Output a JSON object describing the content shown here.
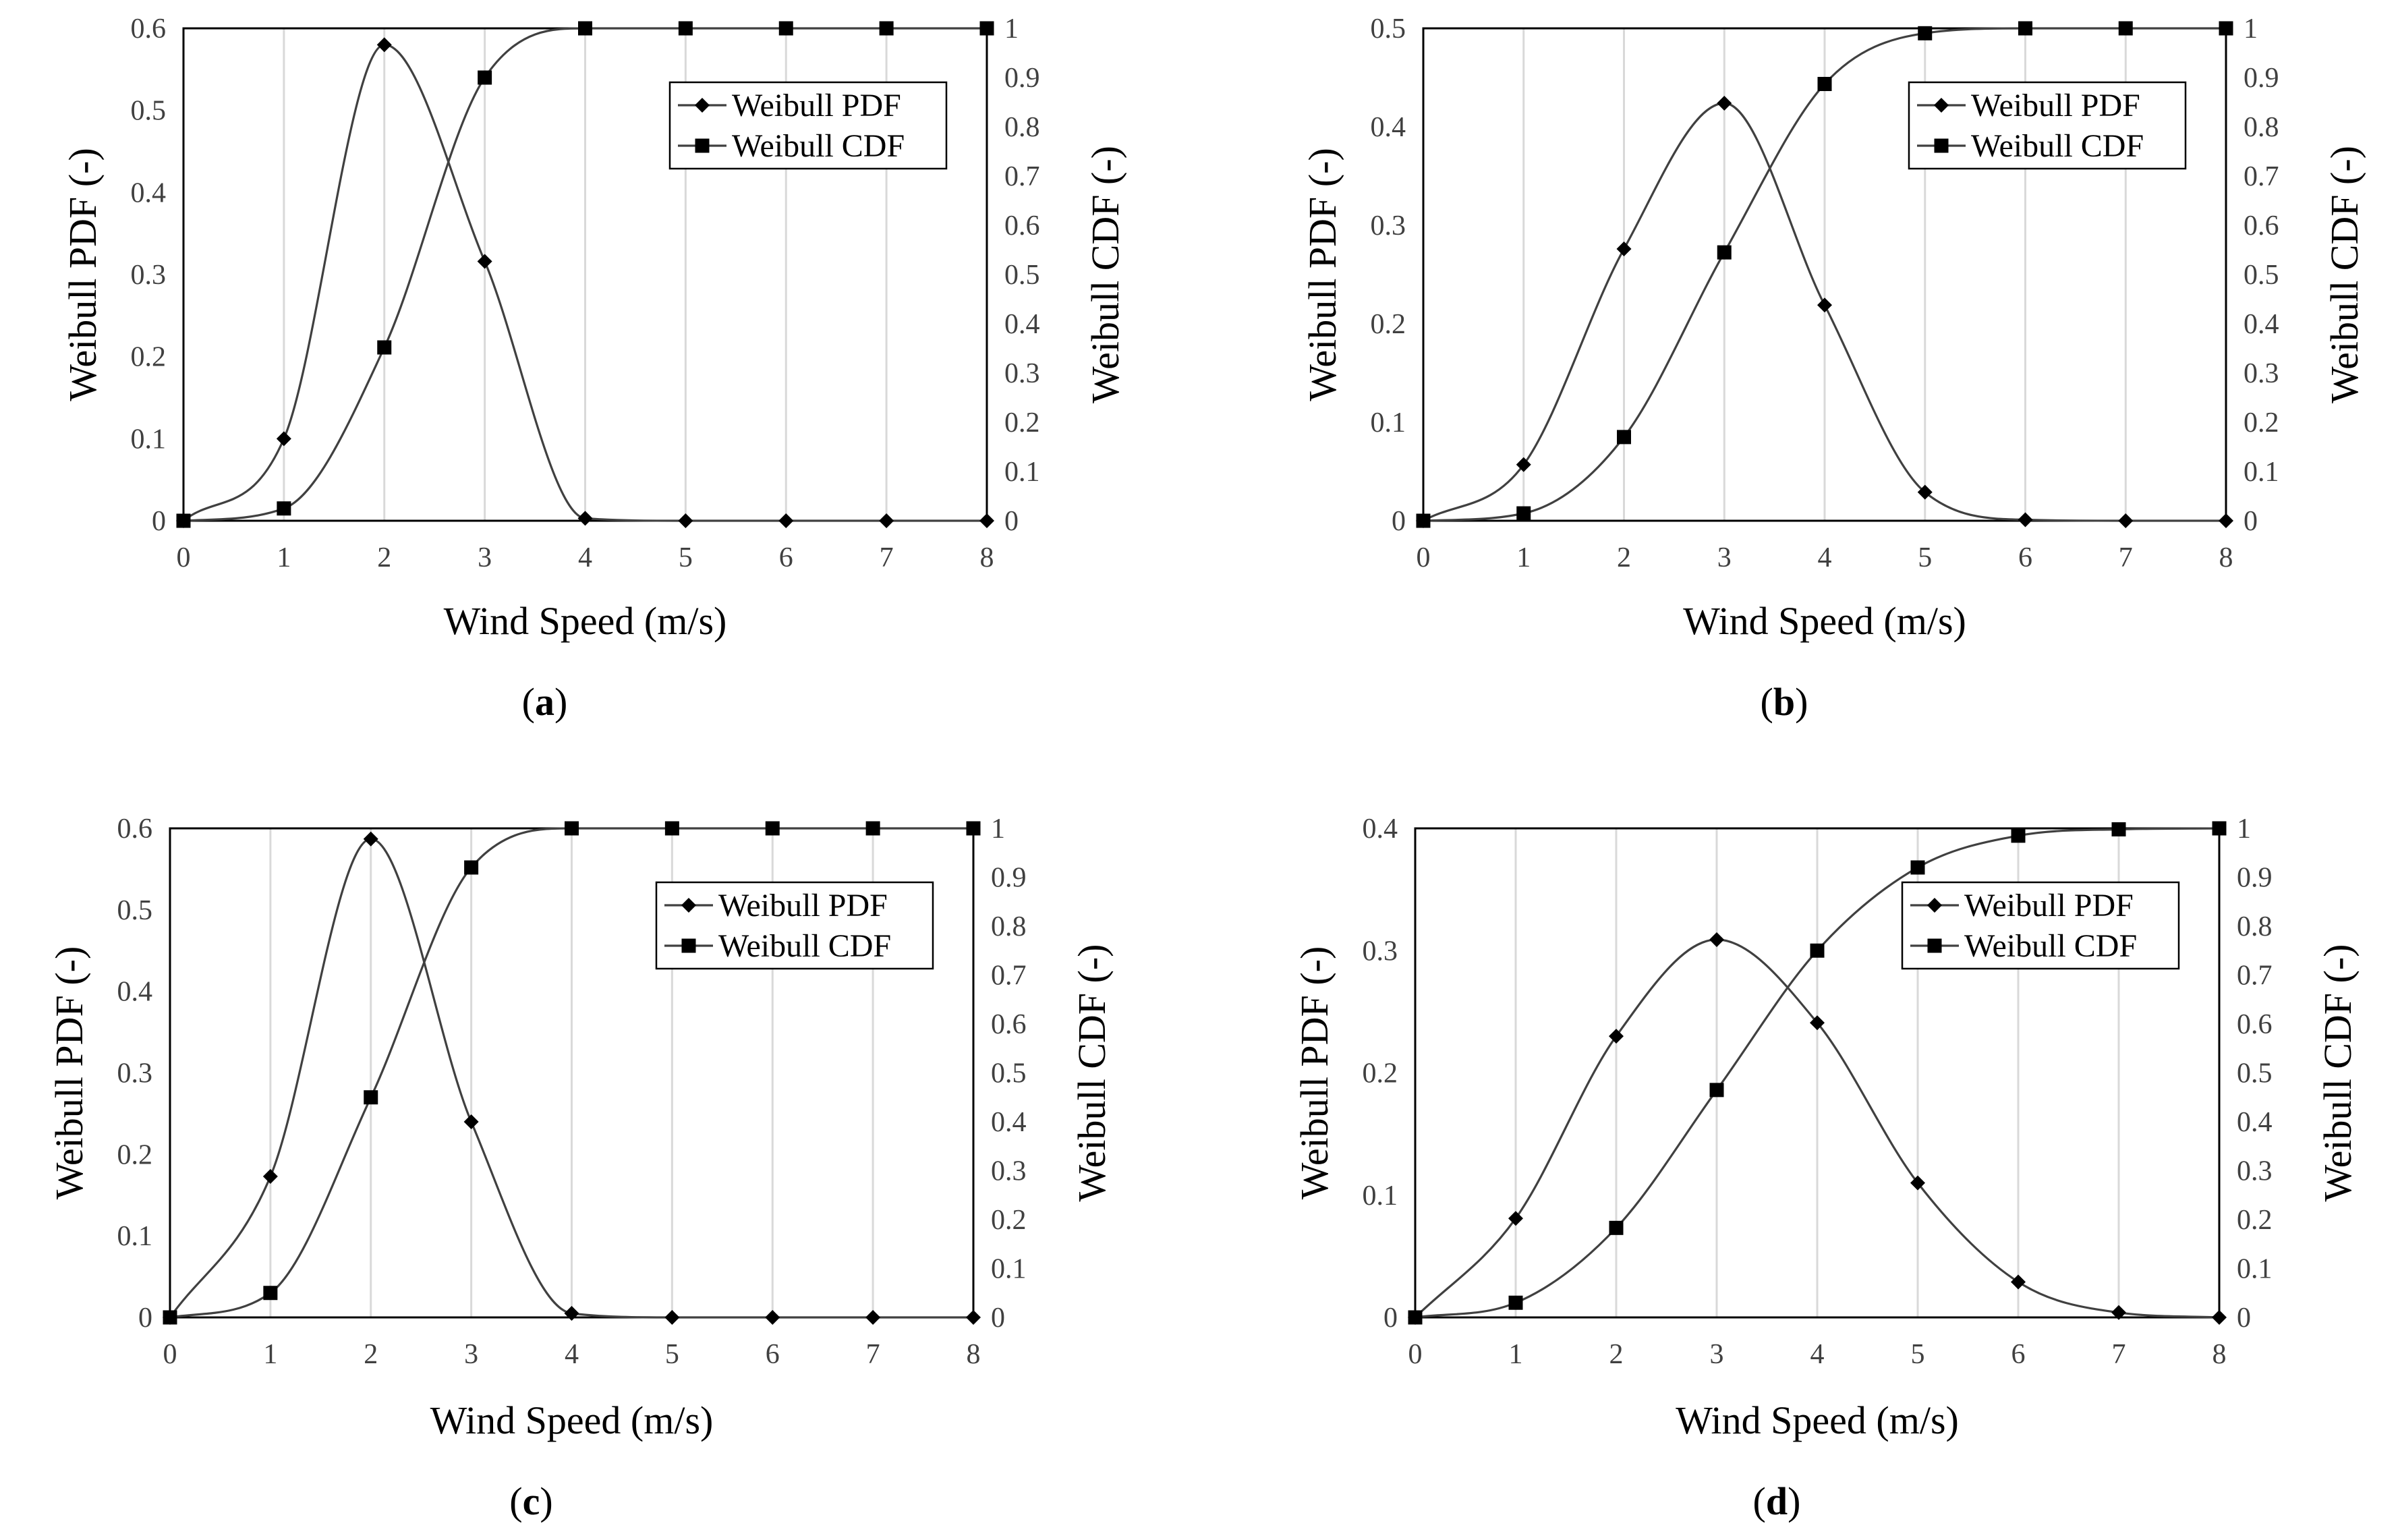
{
  "figure_title": "",
  "chart_data": [
    {
      "panel_label": "a",
      "type": "line",
      "xlabel": "Wind Speed (m/s)",
      "ylabel_left": "Weibull PDF (-)",
      "ylabel_right": "Weibull CDF (-)",
      "x": [
        0,
        1,
        2,
        3,
        4,
        5,
        6,
        7,
        8
      ],
      "xlim": [
        0,
        8
      ],
      "ylim_left": [
        0,
        0.6
      ],
      "ylim_right": [
        0,
        1
      ],
      "yticks_left": [
        "0",
        "0.1",
        "0.2",
        "0.3",
        "0.4",
        "0.5",
        "0.6"
      ],
      "yticks_right": [
        "0",
        "0.1",
        "0.2",
        "0.3",
        "0.4",
        "0.5",
        "0.6",
        "0.7",
        "0.8",
        "0.9",
        "1"
      ],
      "xticks": [
        "0",
        "1",
        "2",
        "3",
        "4",
        "5",
        "6",
        "7",
        "8"
      ],
      "series": [
        {
          "name": "Weibull PDF",
          "axis": "left",
          "marker": "diamond",
          "values": [
            0,
            0.1,
            0.58,
            0.316,
            0.003,
            0,
            0,
            0,
            0
          ]
        },
        {
          "name": "Weibull CDF",
          "axis": "right",
          "marker": "square",
          "values": [
            0,
            0.025,
            0.352,
            0.9,
            1,
            1,
            1,
            1,
            1
          ]
        }
      ],
      "legend": {
        "position": "top-right",
        "entries": [
          "Weibull PDF",
          "Weibull CDF"
        ]
      }
    },
    {
      "panel_label": "b",
      "type": "line",
      "xlabel": "Wind Speed (m/s)",
      "ylabel_left": "Weibull PDF (-)",
      "ylabel_right": "Weibull CDF (-)",
      "x": [
        0,
        1,
        2,
        3,
        4,
        5,
        6,
        7,
        8
      ],
      "xlim": [
        0,
        8
      ],
      "ylim_left": [
        0,
        0.5
      ],
      "ylim_right": [
        0,
        1
      ],
      "yticks_left": [
        "0",
        "0.1",
        "0.2",
        "0.3",
        "0.4",
        "0.5"
      ],
      "yticks_right": [
        "0",
        "0.1",
        "0.2",
        "0.3",
        "0.4",
        "0.5",
        "0.6",
        "0.7",
        "0.8",
        "0.9",
        "1"
      ],
      "xticks": [
        "0",
        "1",
        "2",
        "3",
        "4",
        "5",
        "6",
        "7",
        "8"
      ],
      "series": [
        {
          "name": "Weibull PDF",
          "axis": "left",
          "marker": "diamond",
          "values": [
            0,
            0.057,
            0.276,
            0.424,
            0.219,
            0.029,
            0.001,
            0,
            0
          ]
        },
        {
          "name": "Weibull CDF",
          "axis": "right",
          "marker": "square",
          "values": [
            0,
            0.015,
            0.17,
            0.545,
            0.887,
            0.99,
            1,
            1,
            1
          ]
        }
      ],
      "legend": {
        "position": "top-right",
        "entries": [
          "Weibull PDF",
          "Weibull CDF"
        ]
      }
    },
    {
      "panel_label": "c",
      "type": "line",
      "xlabel": "Wind Speed (m/s)",
      "ylabel_left": "Weibull PDF (-)",
      "ylabel_right": "Weibull CDF (-)",
      "x": [
        0,
        1,
        2,
        3,
        4,
        5,
        6,
        7,
        8
      ],
      "xlim": [
        0,
        8
      ],
      "ylim_left": [
        0,
        0.6
      ],
      "ylim_right": [
        0,
        1
      ],
      "yticks_left": [
        "0",
        "0.1",
        "0.2",
        "0.3",
        "0.4",
        "0.5",
        "0.6"
      ],
      "yticks_right": [
        "0",
        "0.1",
        "0.2",
        "0.3",
        "0.4",
        "0.5",
        "0.6",
        "0.7",
        "0.8",
        "0.9",
        "1"
      ],
      "xticks": [
        "0",
        "1",
        "2",
        "3",
        "4",
        "5",
        "6",
        "7",
        "8"
      ],
      "series": [
        {
          "name": "Weibull PDF",
          "axis": "left",
          "marker": "diamond",
          "values": [
            0,
            0.173,
            0.587,
            0.24,
            0.005,
            0,
            0,
            0,
            0
          ]
        },
        {
          "name": "Weibull CDF",
          "axis": "right",
          "marker": "square",
          "values": [
            0,
            0.05,
            0.45,
            0.92,
            1,
            1,
            1,
            1,
            1
          ]
        }
      ],
      "legend": {
        "position": "top-right",
        "entries": [
          "Weibull PDF",
          "Weibull CDF"
        ]
      }
    },
    {
      "panel_label": "d",
      "type": "line",
      "xlabel": "Wind Speed (m/s)",
      "ylabel_left": "Weibull PDF (-)",
      "ylabel_right": "Weibull CDF (-)",
      "x": [
        0,
        1,
        2,
        3,
        4,
        5,
        6,
        7,
        8
      ],
      "xlim": [
        0,
        8
      ],
      "ylim_left": [
        0,
        0.4
      ],
      "ylim_right": [
        0,
        1
      ],
      "yticks_left": [
        "0",
        "0.1",
        "0.2",
        "0.3",
        "0.4"
      ],
      "yticks_right": [
        "0",
        "0.1",
        "0.2",
        "0.3",
        "0.4",
        "0.5",
        "0.6",
        "0.7",
        "0.8",
        "0.9",
        "1"
      ],
      "xticks": [
        "0",
        "1",
        "2",
        "3",
        "4",
        "5",
        "6",
        "7",
        "8"
      ],
      "series": [
        {
          "name": "Weibull PDF",
          "axis": "left",
          "marker": "diamond",
          "values": [
            0,
            0.081,
            0.23,
            0.309,
            0.241,
            0.11,
            0.029,
            0.004,
            0
          ]
        },
        {
          "name": "Weibull CDF",
          "axis": "right",
          "marker": "square",
          "values": [
            0,
            0.03,
            0.183,
            0.465,
            0.75,
            0.92,
            0.985,
            0.998,
            1
          ]
        }
      ],
      "legend": {
        "position": "top-right",
        "entries": [
          "Weibull PDF",
          "Weibull CDF"
        ]
      }
    }
  ]
}
